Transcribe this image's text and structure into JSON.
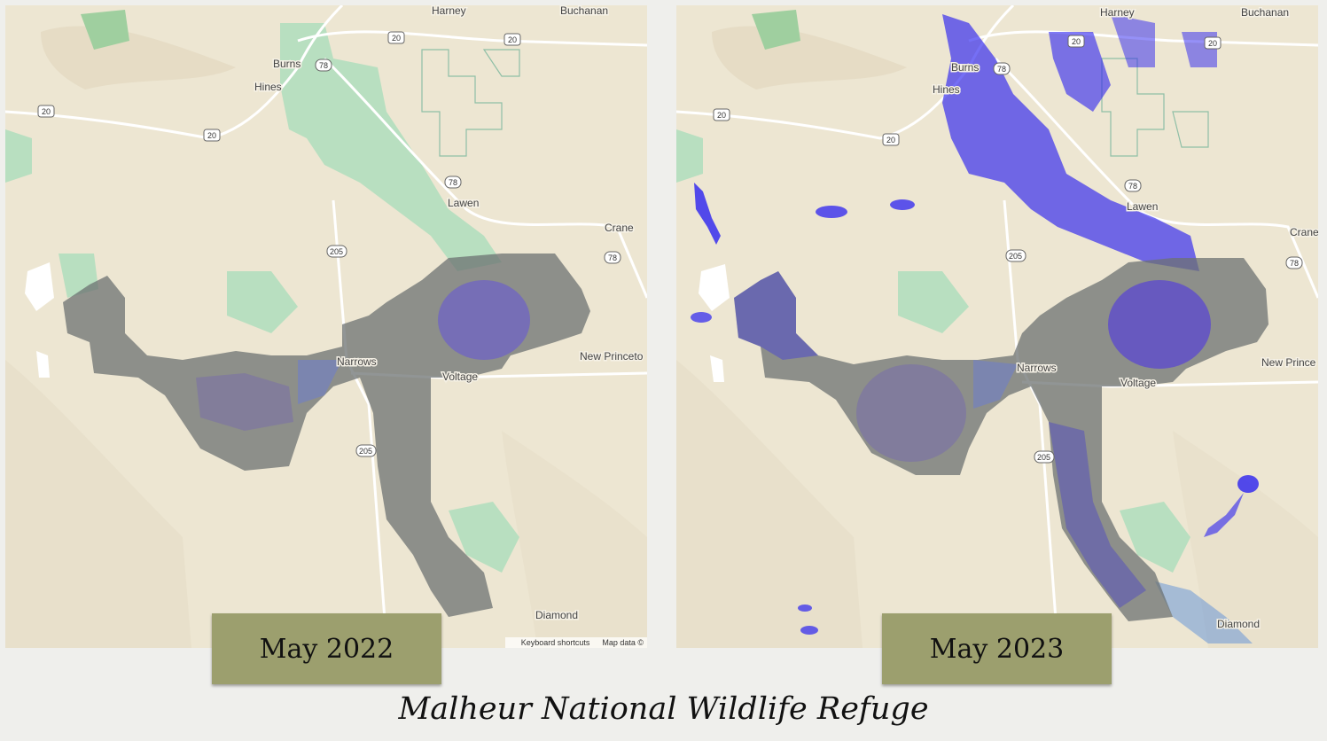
{
  "caption": "Malheur National Wildlife Refuge",
  "colors": {
    "land": "#ede6d2",
    "public_land": "#b8dfc0",
    "refuge_overlay": "#6c7272",
    "water": "#6f63c4",
    "flood": "#2b22f0",
    "label_background": "#9c9f6e"
  },
  "panels": [
    {
      "date_label": "May 2022",
      "places": [
        "Harney",
        "Buchanan",
        "Burns",
        "Hines",
        "Lawen",
        "Crane",
        "Narrows",
        "Voltage",
        "New Princeto",
        "Diamond"
      ],
      "highways": [
        "20",
        "20",
        "20",
        "20",
        "78",
        "78",
        "78",
        "205",
        "205"
      ],
      "attribution": [
        "Keyboard shortcuts",
        "Map data ©"
      ]
    },
    {
      "date_label": "May 2023",
      "places": [
        "Harney",
        "Buchanan",
        "Burns",
        "Hines",
        "Lawen",
        "Crane",
        "Narrows",
        "Voltage",
        "New Prince",
        "Diamond"
      ],
      "highways": [
        "20",
        "20",
        "20",
        "20",
        "78",
        "78",
        "78",
        "205",
        "205"
      ]
    }
  ]
}
